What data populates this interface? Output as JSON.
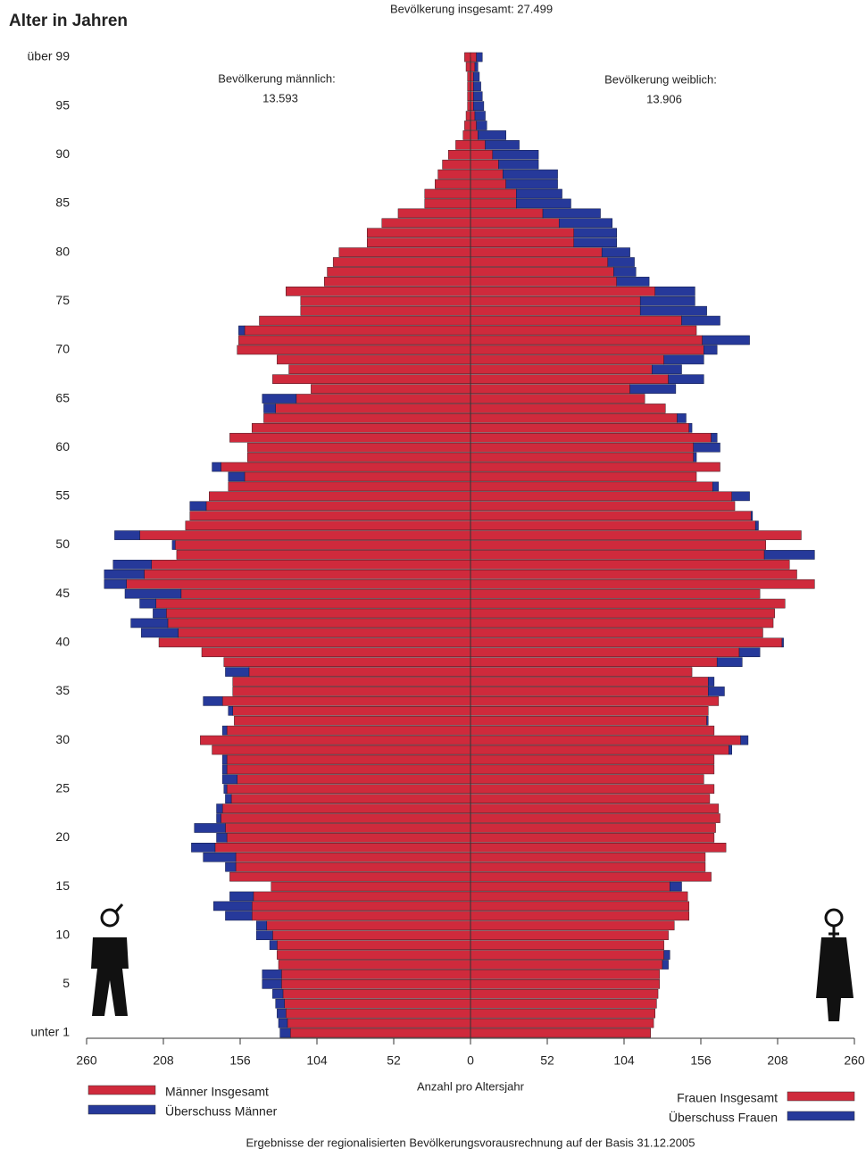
{
  "chart_data": {
    "type": "pyramid",
    "title": "Bevölkerung insgesamt: 27.499",
    "y_axis_label": "Alter in Jahren",
    "x_axis_label": "Anzahl pro Altersjahr",
    "footnote": "Ergebnisse der regionalisierten Bevölkerungsvorausrechnung auf der Basis 31.12.2005",
    "annotations": [
      {
        "label": "Bevölkerung männlich:",
        "value_label": "13.593"
      },
      {
        "label": "Bevölkerung weiblich:",
        "value_label": "13.906"
      }
    ],
    "categories": [
      "unter 1",
      null,
      null,
      null,
      null,
      "5",
      null,
      null,
      null,
      null,
      "10",
      null,
      null,
      null,
      null,
      "15",
      null,
      null,
      null,
      null,
      "20",
      null,
      null,
      null,
      null,
      "25",
      null,
      null,
      null,
      null,
      "30",
      null,
      null,
      null,
      null,
      "35",
      null,
      null,
      null,
      null,
      "40",
      null,
      null,
      null,
      null,
      "45",
      null,
      null,
      null,
      null,
      "50",
      null,
      null,
      null,
      null,
      "55",
      null,
      null,
      null,
      null,
      "60",
      null,
      null,
      null,
      null,
      "65",
      null,
      null,
      null,
      null,
      "70",
      null,
      null,
      null,
      null,
      "75",
      null,
      null,
      null,
      null,
      "80",
      null,
      null,
      null,
      null,
      "85",
      null,
      null,
      null,
      null,
      "90",
      null,
      null,
      null,
      null,
      "95",
      null,
      null,
      null,
      null,
      "über 99"
    ],
    "xlim": [
      0,
      260
    ],
    "xticks": [
      0,
      52,
      104,
      156,
      208,
      260
    ],
    "series": [
      {
        "name": "Männer Insgesamt",
        "color": "#cf2a3c",
        "values": [
          122,
          124,
          125,
          126,
          127,
          128,
          128,
          130,
          131,
          131,
          134,
          138,
          148,
          148,
          147,
          135,
          163,
          159,
          159,
          173,
          165,
          166,
          169,
          168,
          162,
          165,
          158,
          165,
          165,
          175,
          183,
          165,
          160,
          161,
          168,
          161,
          161,
          150,
          167,
          182,
          211,
          198,
          205,
          206,
          213,
          196,
          233,
          221,
          216,
          199,
          200,
          224,
          193,
          190,
          179,
          177,
          164,
          153,
          169,
          151,
          151,
          163,
          148,
          140,
          132,
          118,
          108,
          134,
          123,
          131,
          158,
          157,
          153,
          143,
          115,
          115,
          125,
          99,
          97,
          93,
          89,
          70,
          70,
          60,
          49,
          31,
          31,
          24,
          22,
          19,
          15,
          10,
          5,
          4,
          3,
          2,
          2,
          2,
          2,
          3,
          4
        ]
      },
      {
        "name": "Überschuss Männer",
        "color": "#26399a",
        "values": [
          7,
          6,
          6,
          6,
          7,
          13,
          13,
          0,
          0,
          5,
          11,
          7,
          18,
          26,
          16,
          0,
          0,
          7,
          22,
          16,
          7,
          21,
          3,
          4,
          4,
          2,
          10,
          3,
          3,
          0,
          0,
          3,
          0,
          3,
          13,
          0,
          0,
          16,
          0,
          0,
          0,
          25,
          25,
          9,
          11,
          38,
          15,
          27,
          26,
          0,
          2,
          17,
          0,
          0,
          11,
          0,
          0,
          11,
          6,
          0,
          0,
          0,
          0,
          0,
          8,
          23,
          0,
          0,
          0,
          0,
          0,
          0,
          4,
          0,
          0,
          0,
          0,
          0,
          0,
          0,
          0,
          0,
          0,
          0,
          0,
          0,
          0,
          0,
          0,
          0,
          0,
          0,
          0,
          0,
          0,
          0,
          0,
          0,
          0,
          0,
          0
        ]
      },
      {
        "name": "Frauen Insgesamt",
        "color": "#cf2a3c",
        "values": [
          122,
          124,
          125,
          126,
          127,
          128,
          128,
          130,
          131,
          131,
          134,
          138,
          148,
          148,
          147,
          135,
          163,
          159,
          159,
          173,
          165,
          166,
          169,
          168,
          162,
          165,
          158,
          165,
          165,
          175,
          183,
          165,
          160,
          161,
          168,
          161,
          161,
          150,
          167,
          182,
          211,
          198,
          205,
          206,
          213,
          196,
          233,
          221,
          216,
          199,
          200,
          224,
          193,
          190,
          179,
          177,
          164,
          153,
          169,
          151,
          151,
          163,
          148,
          140,
          132,
          118,
          108,
          134,
          123,
          131,
          158,
          157,
          153,
          143,
          115,
          115,
          125,
          99,
          97,
          93,
          89,
          70,
          70,
          60,
          49,
          31,
          31,
          24,
          22,
          19,
          15,
          10,
          5,
          4,
          3,
          2,
          2,
          2,
          2,
          3,
          4
        ]
      },
      {
        "name": "Überschuss Frauen",
        "color": "#26399a",
        "values": [
          0,
          0,
          0,
          0,
          0,
          0,
          0,
          4,
          4,
          0,
          0,
          0,
          0,
          0,
          0,
          8,
          0,
          0,
          0,
          0,
          0,
          0,
          0,
          0,
          0,
          0,
          0,
          0,
          0,
          2,
          5,
          0,
          1,
          0,
          0,
          11,
          4,
          0,
          17,
          14,
          1,
          0,
          0,
          0,
          0,
          0,
          0,
          0,
          0,
          34,
          0,
          0,
          2,
          1,
          0,
          12,
          4,
          0,
          0,
          2,
          18,
          4,
          2,
          6,
          0,
          0,
          31,
          24,
          20,
          27,
          9,
          32,
          0,
          26,
          45,
          37,
          27,
          22,
          15,
          18,
          19,
          29,
          29,
          36,
          39,
          37,
          31,
          35,
          37,
          27,
          31,
          23,
          19,
          7,
          7,
          7,
          6,
          5,
          4,
          2,
          4
        ]
      }
    ]
  }
}
